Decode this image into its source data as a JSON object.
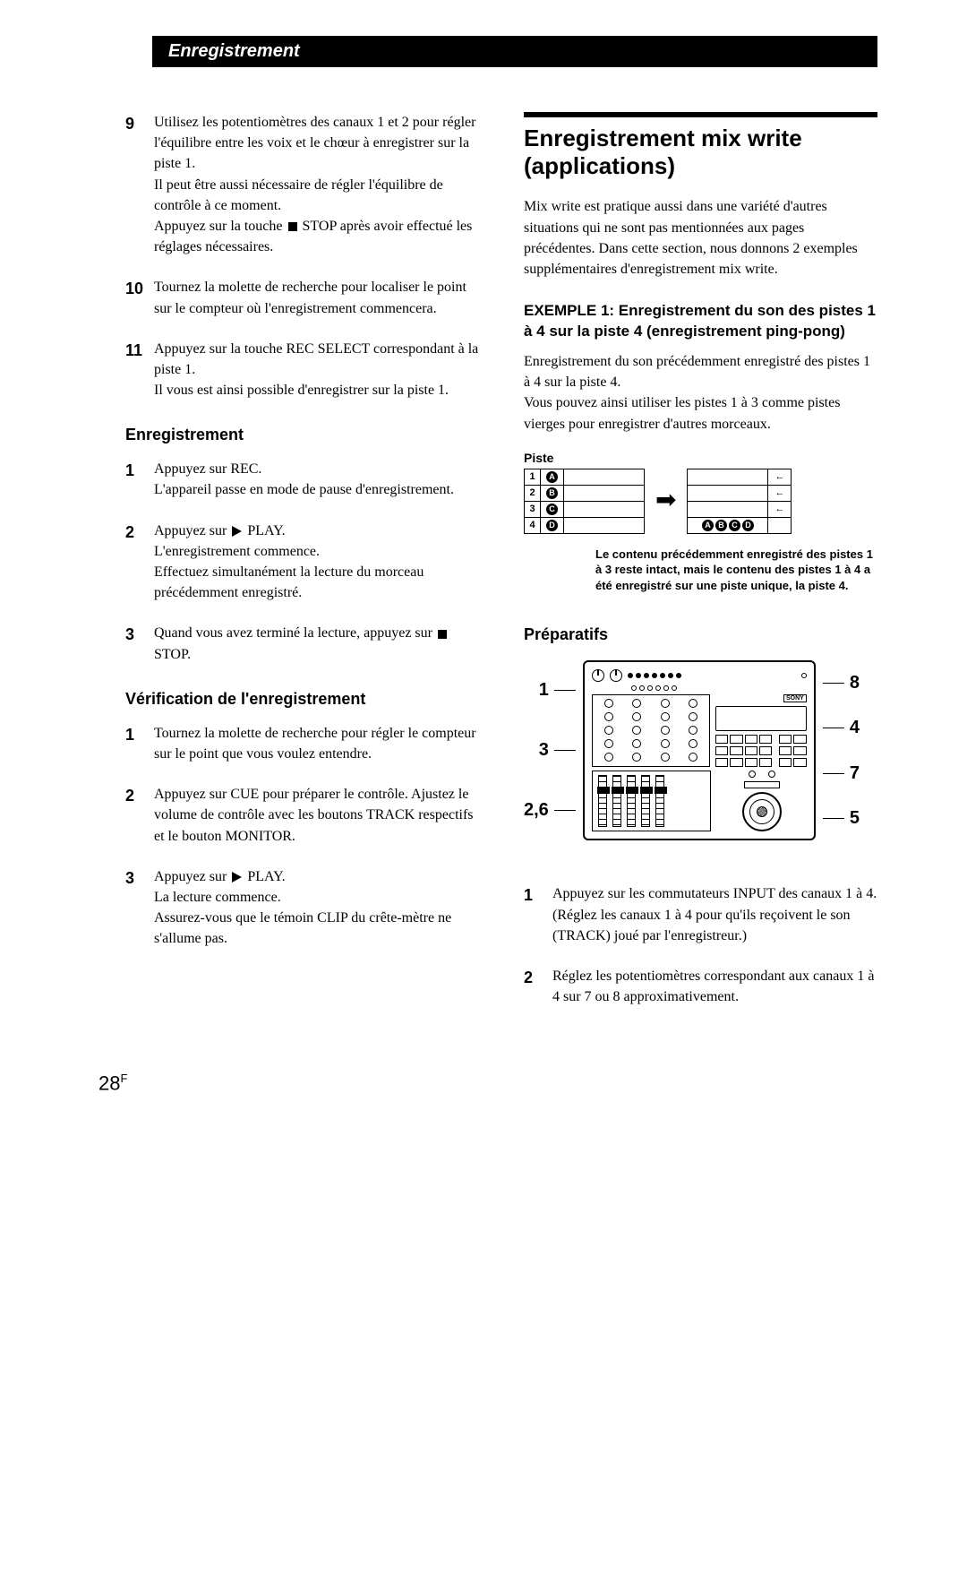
{
  "banner": "Enregistrement",
  "left": {
    "steps_cont": [
      {
        "num": "9",
        "text": "Utilisez les potentiomètres des canaux 1 et 2 pour régler l'équilibre entre les voix et le chœur à enregistrer sur la piste 1.\nIl peut être aussi nécessaire de régler l'équilibre de contrôle à ce moment.\nAppuyez sur la touche ■ STOP après avoir effectué les réglages nécessaires."
      },
      {
        "num": "10",
        "text": "Tournez la molette de recherche pour localiser le point sur le compteur où l'enregistrement commencera."
      },
      {
        "num": "11",
        "text": "Appuyez sur la touche REC SELECT correspondant à la piste 1.\nIl vous est ainsi possible d'enregistrer sur la piste 1."
      }
    ],
    "sec1_title": "Enregistrement",
    "sec1_steps": [
      {
        "num": "1",
        "text": "Appuyez sur REC.\nL'appareil passe en mode de pause d'enregistrement."
      },
      {
        "num": "2",
        "text": "Appuyez sur ▶ PLAY.\nL'enregistrement commence.\nEffectuez simultanément la lecture du morceau précédemment enregistré."
      },
      {
        "num": "3",
        "text": "Quand vous avez terminé la lecture, appuyez sur ■ STOP."
      }
    ],
    "sec2_title": "Vérification de l'enregistrement",
    "sec2_steps": [
      {
        "num": "1",
        "text": "Tournez la molette de recherche pour régler le compteur sur le point que vous voulez entendre."
      },
      {
        "num": "2",
        "text": "Appuyez sur CUE pour préparer le contrôle. Ajustez le volume de contrôle avec les boutons TRACK respectifs et le bouton MONITOR."
      },
      {
        "num": "3",
        "text": "Appuyez sur ▶ PLAY.\nLa lecture commence.\nAssurez-vous que le témoin CLIP du crête-mètre ne s'allume pas."
      }
    ]
  },
  "right": {
    "main_title": "Enregistrement mix write (applications)",
    "intro": "Mix write est pratique aussi dans une variété d'autres situations qui ne sont pas mentionnées aux pages précédentes. Dans cette section, nous donnons 2 exemples supplémentaires d'enregistrement mix write.",
    "example_title": "EXEMPLE 1: Enregistrement du son des pistes 1 à 4 sur la piste 4 (enregistrement ping-pong)",
    "example_body": "Enregistrement du son précédemment enregistré des pistes 1 à 4 sur la piste 4.\nVous pouvez ainsi utiliser les pistes 1 à 3 comme pistes vierges pour enregistrer d'autres morceaux.",
    "piste_label": "Piste",
    "piste_left": {
      "rows": [
        {
          "num": "1",
          "letter": "A"
        },
        {
          "num": "2",
          "letter": "B"
        },
        {
          "num": "3",
          "letter": "C"
        },
        {
          "num": "4",
          "letter": "D"
        }
      ]
    },
    "piste_right_combined": "ABCD",
    "caption": "Le contenu précédemment enregistré des pistes 1 à 3 reste intact, mais le contenu des pistes 1 à 4 a été enregistré sur une piste unique, la piste 4.",
    "prep_title": "Préparatifs",
    "callouts_left": [
      "1",
      "3",
      "2,6"
    ],
    "callouts_right": [
      "8",
      "4",
      "7",
      "5"
    ],
    "prep_steps": [
      {
        "num": "1",
        "text": "Appuyez sur les commutateurs INPUT des canaux 1 à 4.\n(Réglez les canaux 1 à 4 pour qu'ils reçoivent le son (TRACK) joué par l'enregistreur.)"
      },
      {
        "num": "2",
        "text": "Réglez les potentiomètres correspondant aux canaux 1 à 4 sur 7 ou 8 approximativement."
      }
    ]
  },
  "page_num": "28",
  "page_sup": "F"
}
